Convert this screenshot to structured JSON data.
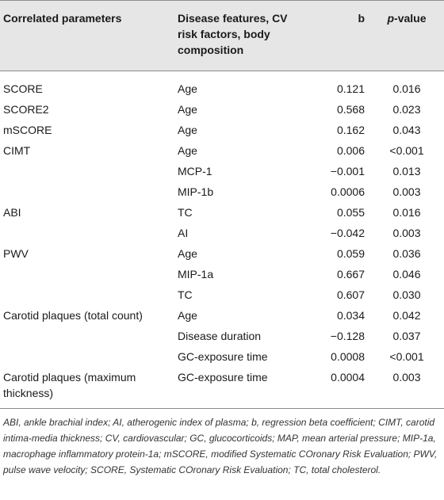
{
  "header": {
    "col1": "Correlated parameters",
    "col2": "Disease features, CV risk factors, body composition",
    "col3": "b",
    "col4_italic": "p",
    "col4_rest": "-value"
  },
  "rows": [
    {
      "param": "SCORE",
      "feature": "Age",
      "b": "0.121",
      "p": "0.016"
    },
    {
      "param": "SCORE2",
      "feature": "Age",
      "b": "0.568",
      "p": "0.023"
    },
    {
      "param": "mSCORE",
      "feature": "Age",
      "b": "0.162",
      "p": "0.043"
    },
    {
      "param": "CIMT",
      "feature": "Age",
      "b": "0.006",
      "p": "<0.001"
    },
    {
      "param": "",
      "feature": "MCP-1",
      "b": "−0.001",
      "p": "0.013"
    },
    {
      "param": "",
      "feature": "MIP-1b",
      "b": "0.0006",
      "p": "0.003"
    },
    {
      "param": "ABI",
      "feature": "TC",
      "b": "0.055",
      "p": "0.016"
    },
    {
      "param": "",
      "feature": "AI",
      "b": "−0.042",
      "p": "0.003"
    },
    {
      "param": "PWV",
      "feature": "Age",
      "b": "0.059",
      "p": "0.036"
    },
    {
      "param": "",
      "feature": "MIP-1a",
      "b": "0.667",
      "p": "0.046"
    },
    {
      "param": "",
      "feature": "TC",
      "b": "0.607",
      "p": "0.030"
    },
    {
      "param": "Carotid plaques (total count)",
      "feature": "Age",
      "b": "0.034",
      "p": "0.042"
    },
    {
      "param": "",
      "feature": "Disease duration",
      "b": "−0.128",
      "p": "0.037"
    },
    {
      "param": "",
      "feature": "GC-exposure time",
      "b": "0.0008",
      "p": "<0.001"
    },
    {
      "param": "Carotid plaques (maximum thickness)",
      "feature": "GC-exposure time",
      "b": "0.0004",
      "p": "0.003"
    }
  ],
  "footnote": "ABI, ankle brachial index; AI, atherogenic index of plasma; b, regression beta coefficient; CIMT, carotid intima-media thickness; CV, cardiovascular; GC, glucocorticoids; MAP, mean arterial pressure; MIP-1a, macrophage inflammatory protein-1a; mSCORE, modified Systematic COronary Risk Evaluation; PWV, pulse wave velocity; SCORE, Systematic COronary Risk Evaluation; TC, total cholesterol."
}
